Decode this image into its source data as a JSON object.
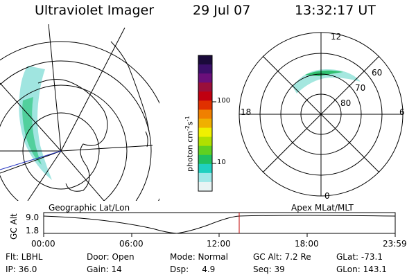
{
  "header": {
    "app_title": "Ultraviolet Imager",
    "date": "29 Jul 07",
    "time": "13:32:17 UT"
  },
  "colorbar": {
    "unit_label": "photon cm",
    "unit_sup1": "-2",
    "unit_s": "s",
    "unit_sup2": "-1",
    "ticks": [
      "100",
      "10"
    ],
    "colors": [
      "#1a0a3a",
      "#3b0f6a",
      "#6a0f7a",
      "#9a0f3a",
      "#c00010",
      "#e03000",
      "#f08000",
      "#f0b000",
      "#f0f000",
      "#b0e000",
      "#60d020",
      "#20c060",
      "#20d0c0",
      "#a0e8e8",
      "#e8f4f4"
    ]
  },
  "polar": {
    "mlt_labels": {
      "top": "12",
      "left": "18",
      "right": "6",
      "bottom": "0"
    },
    "lat_labels": [
      "60",
      "70",
      "80"
    ]
  },
  "timeline": {
    "title_left": "Geographic Lat/Lon",
    "title_right": "Apex MLat/MLT",
    "ylabel": "GC Alt",
    "ytick_top": "9.0",
    "ytick_bottom": "1.8",
    "xticks": [
      "00:00",
      "06:00",
      "12:00",
      "18:00",
      "23:59"
    ],
    "cursor_color": "#c00000"
  },
  "status": {
    "row1": {
      "flt": "Flt: LBHL",
      "door": "Door: Open",
      "mode": "Mode: Normal",
      "gcalt": "GC Alt: 7.2 Re",
      "glat": "GLat: -73.1"
    },
    "row2": {
      "ip": "IP: 36.0",
      "gain": "Gain: 14",
      "dsp": "Dsp:     4.9",
      "seq": "Seq: 39",
      "glon": "GLon: 143.1"
    }
  }
}
